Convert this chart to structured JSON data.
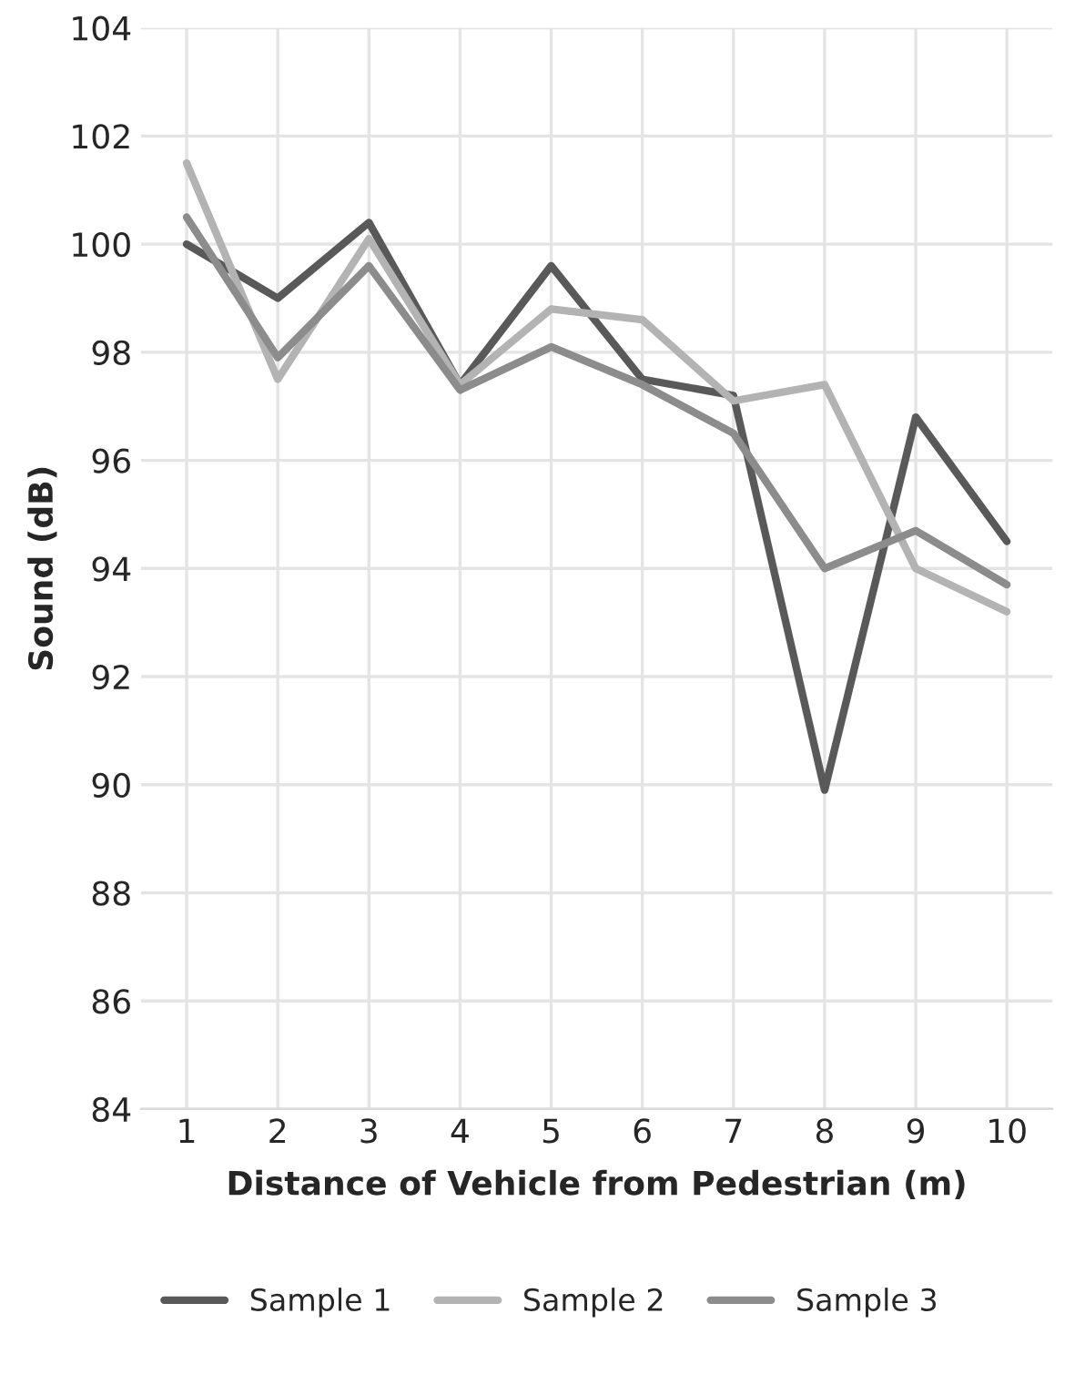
{
  "chart_data": {
    "type": "line",
    "xlabel": "Distance of Vehicle from Pedestrian (m)",
    "ylabel": "Sound (dB)",
    "categories": [
      "1",
      "2",
      "3",
      "4",
      "5",
      "6",
      "7",
      "8",
      "9",
      "10"
    ],
    "series": [
      {
        "name": "Sample 1",
        "color": "#595959",
        "values": [
          100,
          99,
          100.4,
          97.4,
          99.6,
          97.5,
          97.2,
          89.9,
          96.8,
          94.5
        ]
      },
      {
        "name": "Sample 2",
        "color": "#b3b3b3",
        "values": [
          101.5,
          97.5,
          100.1,
          97.4,
          98.8,
          98.6,
          97.1,
          97.4,
          94.0,
          93.2
        ]
      },
      {
        "name": "Sample 3",
        "color": "#8c8c8c",
        "values": [
          100.5,
          97.9,
          99.6,
          97.3,
          98.1,
          97.4,
          96.5,
          94.0,
          94.7,
          93.7
        ]
      }
    ],
    "ylim": [
      84,
      104
    ],
    "yticks": [
      84,
      86,
      88,
      90,
      92,
      94,
      96,
      98,
      100,
      102,
      104
    ],
    "grid": true,
    "legend": "bottom",
    "marker": "none",
    "line_style": "solid"
  }
}
